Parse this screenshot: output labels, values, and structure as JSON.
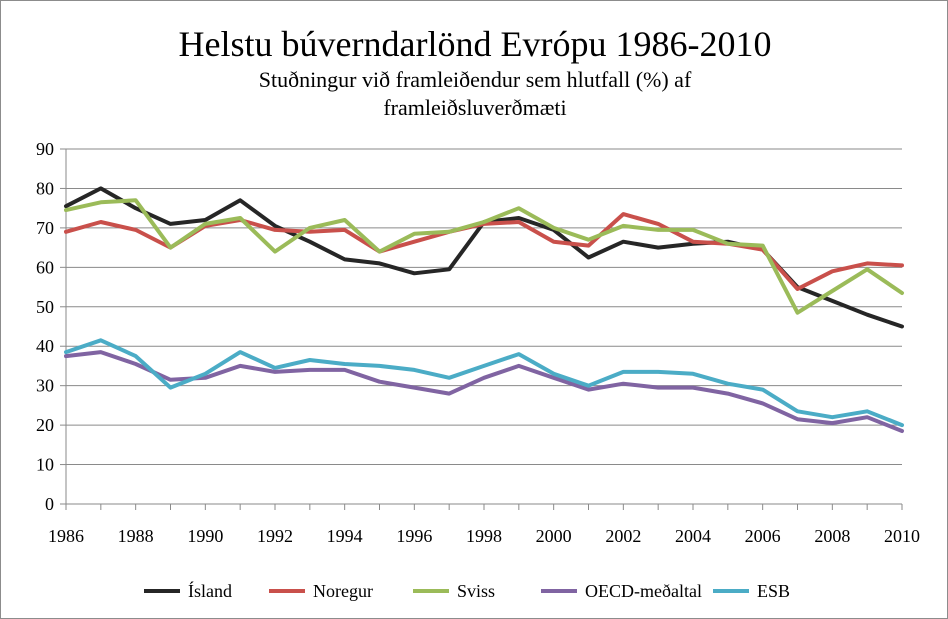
{
  "chart_data": {
    "type": "line",
    "title": "Helstu búverndarlönd Evrópu 1986-2010",
    "subtitle_line1": "Stuðningur við framleiðendur sem hlutfall (%) af",
    "subtitle_line2": "framleiðsluverðmæti",
    "x": [
      1986,
      1987,
      1988,
      1989,
      1990,
      1991,
      1992,
      1993,
      1994,
      1995,
      1996,
      1997,
      1998,
      1999,
      2000,
      2001,
      2002,
      2003,
      2004,
      2005,
      2006,
      2007,
      2008,
      2009,
      2010
    ],
    "x_tick_labels": [
      "1986",
      "1988",
      "1990",
      "1992",
      "1994",
      "1996",
      "1998",
      "2000",
      "2002",
      "2004",
      "2006",
      "2008",
      "2010"
    ],
    "y_tick_labels": [
      "0",
      "10",
      "20",
      "30",
      "40",
      "50",
      "60",
      "70",
      "80",
      "90"
    ],
    "ylim": [
      0,
      90
    ],
    "xlim": [
      1986,
      2010
    ],
    "grid": "horizontal",
    "legend_position": "bottom",
    "series": [
      {
        "name": "Ísland",
        "color": "#262626",
        "values": [
          75.5,
          80,
          75,
          71,
          72,
          77,
          70.5,
          66.5,
          62,
          61,
          58.5,
          59.5,
          71.5,
          72.5,
          69.5,
          62.5,
          66.5,
          65,
          66,
          66.5,
          64.5,
          55,
          51.5,
          48,
          45
        ]
      },
      {
        "name": "Noregur",
        "color": "#c9504b",
        "values": [
          69,
          71.5,
          69.5,
          65,
          70.5,
          72,
          69.5,
          69,
          69.5,
          64,
          66.5,
          69,
          71,
          71.5,
          66.5,
          65.5,
          73.5,
          71,
          66.5,
          66,
          64.5,
          54.5,
          59,
          61,
          60.5
        ]
      },
      {
        "name": "Sviss",
        "color": "#9bbb59",
        "values": [
          74.5,
          76.5,
          77,
          65,
          71,
          72.5,
          64,
          70,
          72,
          64,
          68.5,
          69,
          71.5,
          75,
          70,
          67,
          70.5,
          69.5,
          69.5,
          66,
          65.5,
          48.5,
          54,
          59.5,
          53.5
        ]
      },
      {
        "name": "OECD-meðaltal",
        "color": "#8064a2",
        "values": [
          37.5,
          38.5,
          35.5,
          31.5,
          32,
          35,
          33.5,
          34,
          34,
          31,
          29.5,
          28,
          32,
          35,
          32,
          29,
          30.5,
          29.5,
          29.5,
          28,
          25.5,
          21.5,
          20.5,
          22,
          18.5
        ]
      },
      {
        "name": "ESB",
        "color": "#4bacc6",
        "values": [
          38.5,
          41.5,
          37.5,
          29.5,
          33,
          38.5,
          34.5,
          36.5,
          35.5,
          35,
          34,
          32,
          35,
          38,
          33,
          30,
          33.5,
          33.5,
          33,
          30.5,
          29,
          23.5,
          22,
          23.5,
          20
        ]
      }
    ]
  }
}
